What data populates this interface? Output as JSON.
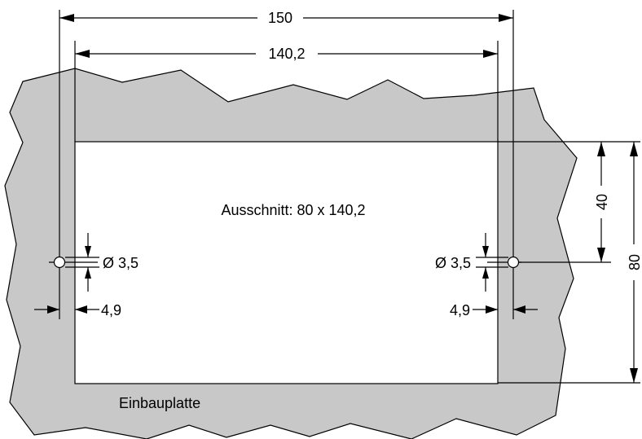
{
  "drawing": {
    "plate_label": "Einbauplatte",
    "cutout_label": "Ausschnitt: 80 x 140,2",
    "dimensions": {
      "overall_width": "150",
      "cutout_width": "140,2",
      "hole_center_height": "40",
      "cutout_height": "80",
      "hole_diameter_left": "Ø 3,5",
      "hole_diameter_right": "Ø 3,5",
      "edge_offset_left": "4,9",
      "edge_offset_right": "4,9"
    },
    "colors": {
      "plate_fill": "#c8c8c8",
      "cutout_fill": "#ffffff",
      "line": "#000000"
    }
  }
}
